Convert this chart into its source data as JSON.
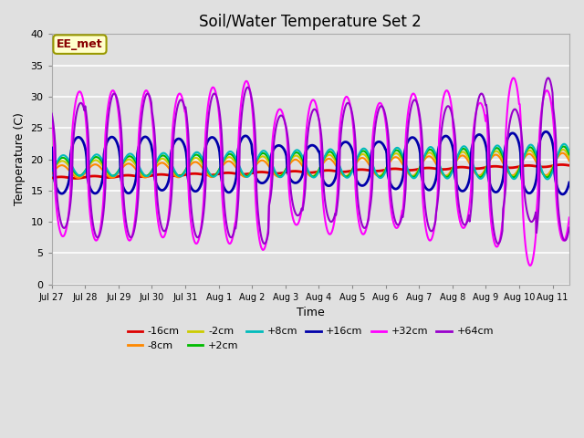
{
  "title": "Soil/Water Temperature Set 2",
  "xlabel": "Time",
  "ylabel": "Temperature (C)",
  "ylim": [
    0,
    40
  ],
  "yticks": [
    0,
    5,
    10,
    15,
    20,
    25,
    30,
    35,
    40
  ],
  "xtick_labels": [
    "Jul 27",
    "Jul 28",
    "Jul 29",
    "Jul 30",
    "Jul 31",
    "Aug 1",
    "Aug 2",
    "Aug 3",
    "Aug 4",
    "Aug 5",
    "Aug 6",
    "Aug 7",
    "Aug 8",
    "Aug 9",
    "Aug 10",
    "Aug 11"
  ],
  "bg_color": "#e0e0e0",
  "grid_color": "#ffffff",
  "series": {
    "-16cm": {
      "color": "#dd0000",
      "linewidth": 2.0,
      "zorder": 5
    },
    "-8cm": {
      "color": "#ff8800",
      "linewidth": 1.5,
      "zorder": 5
    },
    "-2cm": {
      "color": "#cccc00",
      "linewidth": 1.5,
      "zorder": 5
    },
    "+2cm": {
      "color": "#00bb00",
      "linewidth": 1.5,
      "zorder": 5
    },
    "+8cm": {
      "color": "#00bbbb",
      "linewidth": 1.5,
      "zorder": 5
    },
    "+16cm": {
      "color": "#0000aa",
      "linewidth": 2.0,
      "zorder": 6
    },
    "+32cm": {
      "color": "#ff00ff",
      "linewidth": 1.5,
      "zorder": 7
    },
    "+64cm": {
      "color": "#9900cc",
      "linewidth": 1.5,
      "zorder": 8
    }
  },
  "annotation_text": "EE_met",
  "title_fontsize": 12,
  "tick_fontsize": 8,
  "label_fontsize": 9
}
